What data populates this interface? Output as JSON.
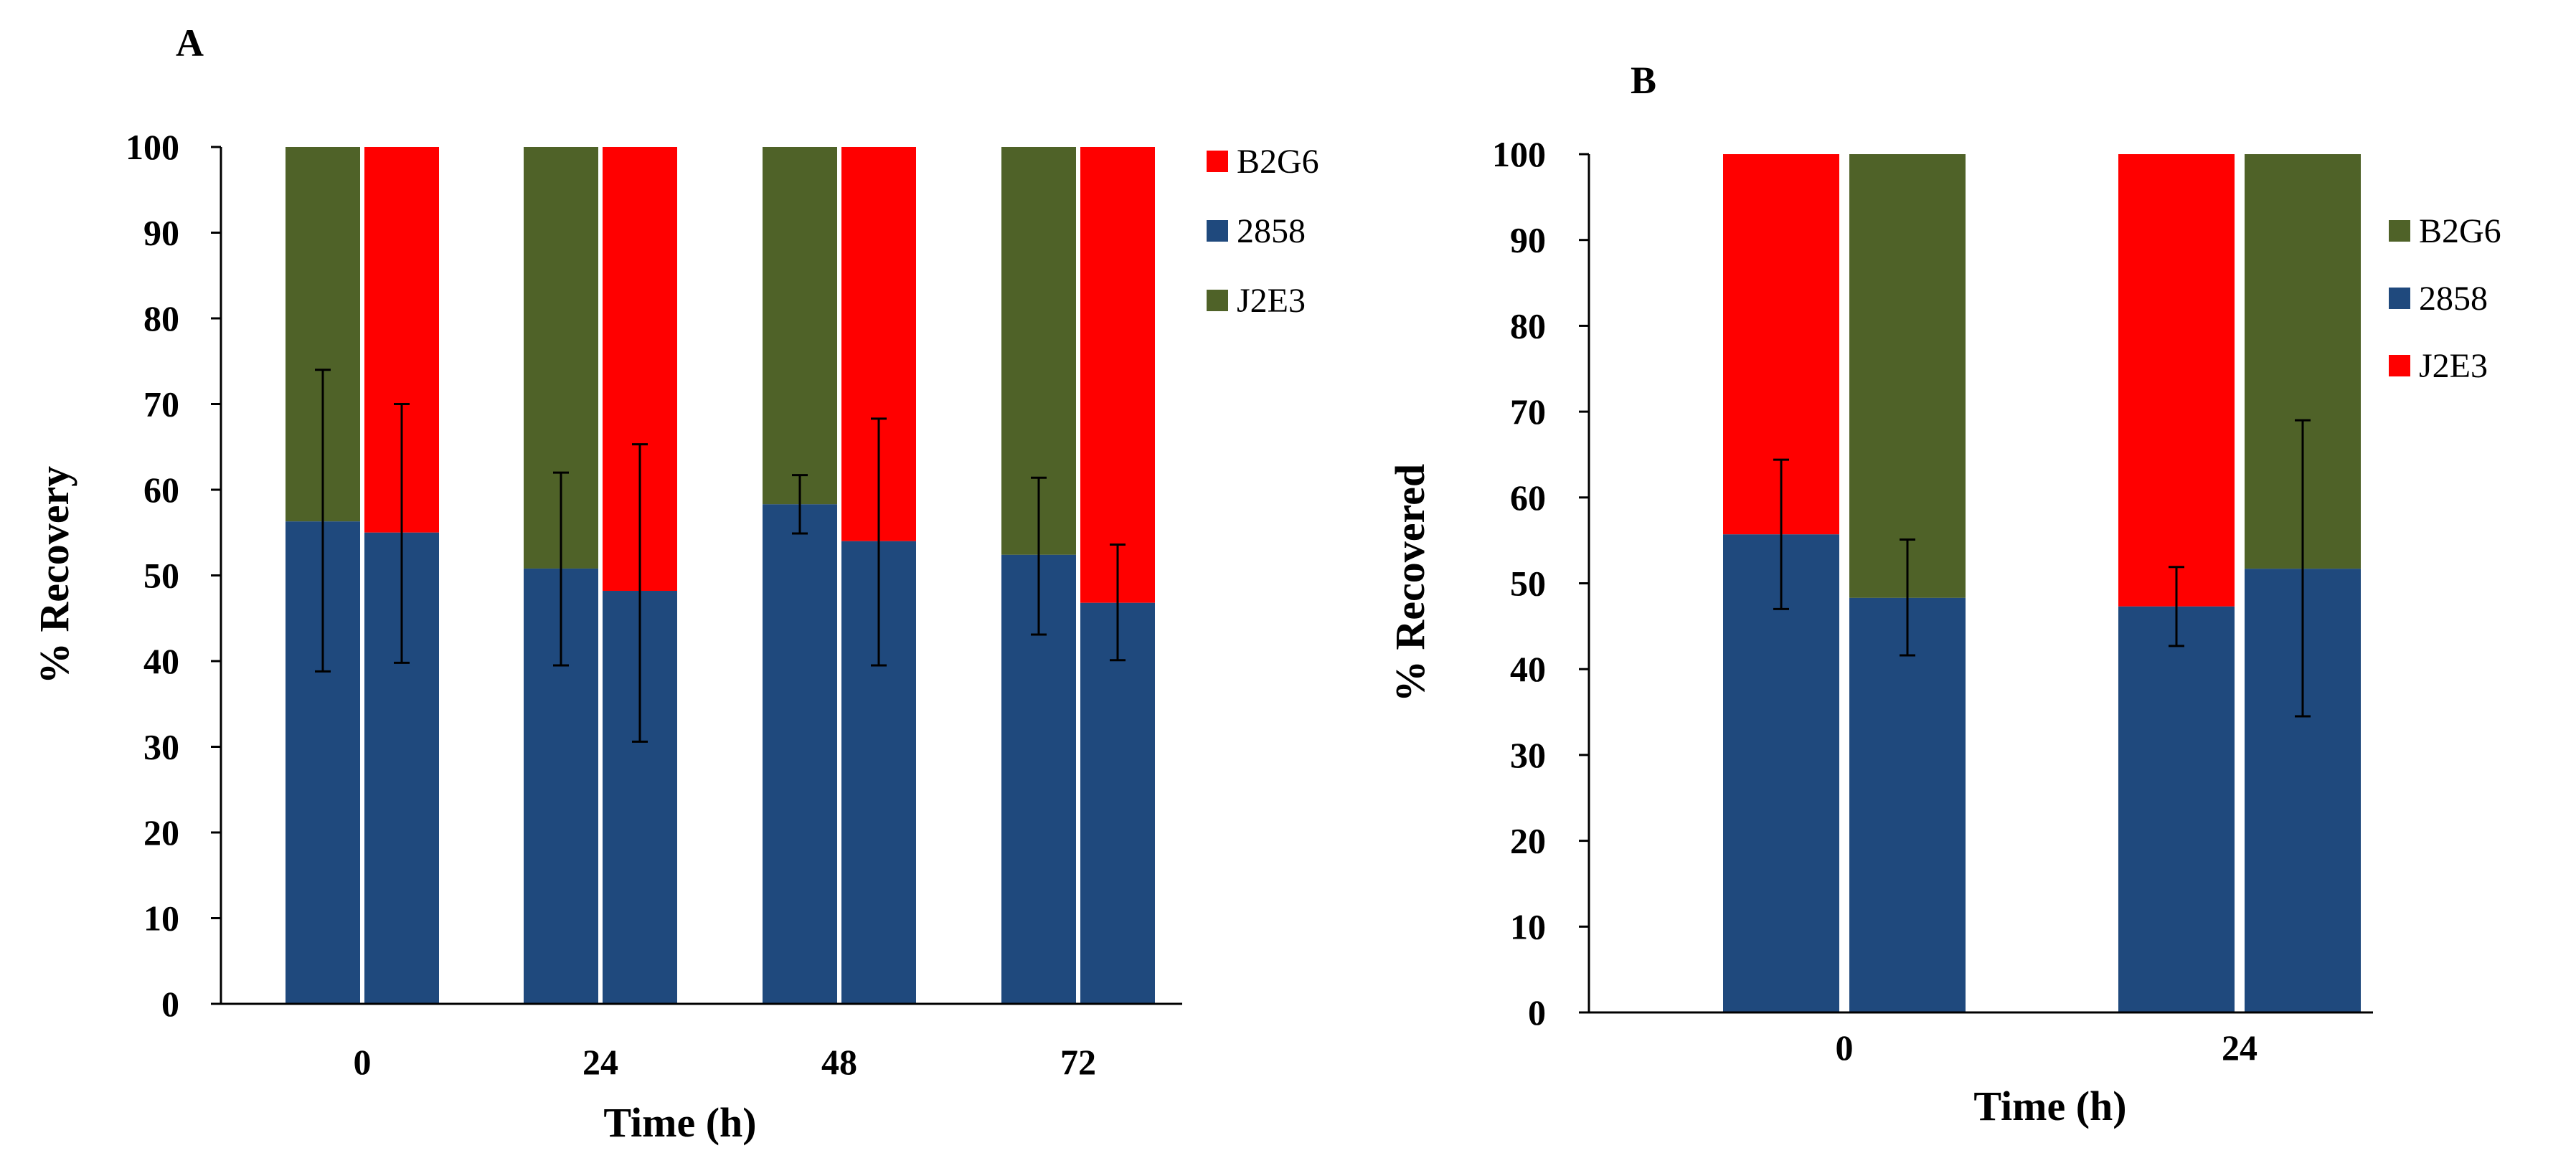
{
  "chart_data": [
    {
      "panel_label": "A",
      "type": "bar",
      "stacked": true,
      "xlabel": "Time (h)",
      "ylabel": "% Recovery",
      "ylim": [
        0,
        100
      ],
      "yticks": [
        "0",
        "10",
        "20",
        "30",
        "40",
        "50",
        "60",
        "70",
        "80",
        "90",
        "100"
      ],
      "categories": [
        "0",
        "24",
        "48",
        "72"
      ],
      "legend_position": "right",
      "legend": [
        {
          "label": "B2G6",
          "color": "#ff0000"
        },
        {
          "label": "2858",
          "color": "#1f497d"
        },
        {
          "label": "J2E3",
          "color": "#4f6228"
        }
      ],
      "bars": [
        {
          "category": "0",
          "partner": "J2E3",
          "value_2858": 56.3,
          "err_low": 38.8,
          "err_high": 74.0
        },
        {
          "category": "0",
          "partner": "B2G6",
          "value_2858": 55.0,
          "err_low": 39.8,
          "err_high": 70.0
        },
        {
          "category": "24",
          "partner": "J2E3",
          "value_2858": 50.8,
          "err_low": 39.5,
          "err_high": 62.0
        },
        {
          "category": "24",
          "partner": "B2G6",
          "value_2858": 48.2,
          "err_low": 30.6,
          "err_high": 65.3
        },
        {
          "category": "48",
          "partner": "J2E3",
          "value_2858": 58.3,
          "err_low": 54.9,
          "err_high": 61.7
        },
        {
          "category": "48",
          "partner": "B2G6",
          "value_2858": 54.0,
          "err_low": 39.5,
          "err_high": 68.3
        },
        {
          "category": "72",
          "partner": "J2E3",
          "value_2858": 52.4,
          "err_low": 43.1,
          "err_high": 61.4
        },
        {
          "category": "72",
          "partner": "B2G6",
          "value_2858": 46.8,
          "err_low": 40.1,
          "err_high": 53.6
        }
      ]
    },
    {
      "panel_label": "B",
      "type": "bar",
      "stacked": true,
      "xlabel": "Time (h)",
      "ylabel": "% Recovered",
      "ylim": [
        0,
        100
      ],
      "yticks": [
        "0",
        "10",
        "20",
        "30",
        "40",
        "50",
        "60",
        "70",
        "80",
        "90",
        "100"
      ],
      "categories": [
        "0",
        "24"
      ],
      "legend_position": "right",
      "legend": [
        {
          "label": "B2G6",
          "color": "#4f6228"
        },
        {
          "label": "2858",
          "color": "#1f497d"
        },
        {
          "label": "J2E3",
          "color": "#ff0000"
        }
      ],
      "bars": [
        {
          "category": "0",
          "partner": "J2E3",
          "value_2858": 55.7,
          "err_low": 47.0,
          "err_high": 64.4
        },
        {
          "category": "0",
          "partner": "B2G6",
          "value_2858": 48.3,
          "err_low": 41.6,
          "err_high": 55.1
        },
        {
          "category": "24",
          "partner": "J2E3",
          "value_2858": 47.3,
          "err_low": 42.7,
          "err_high": 51.9
        },
        {
          "category": "24",
          "partner": "B2G6",
          "value_2858": 51.7,
          "err_low": 34.5,
          "err_high": 69.0
        }
      ]
    }
  ]
}
